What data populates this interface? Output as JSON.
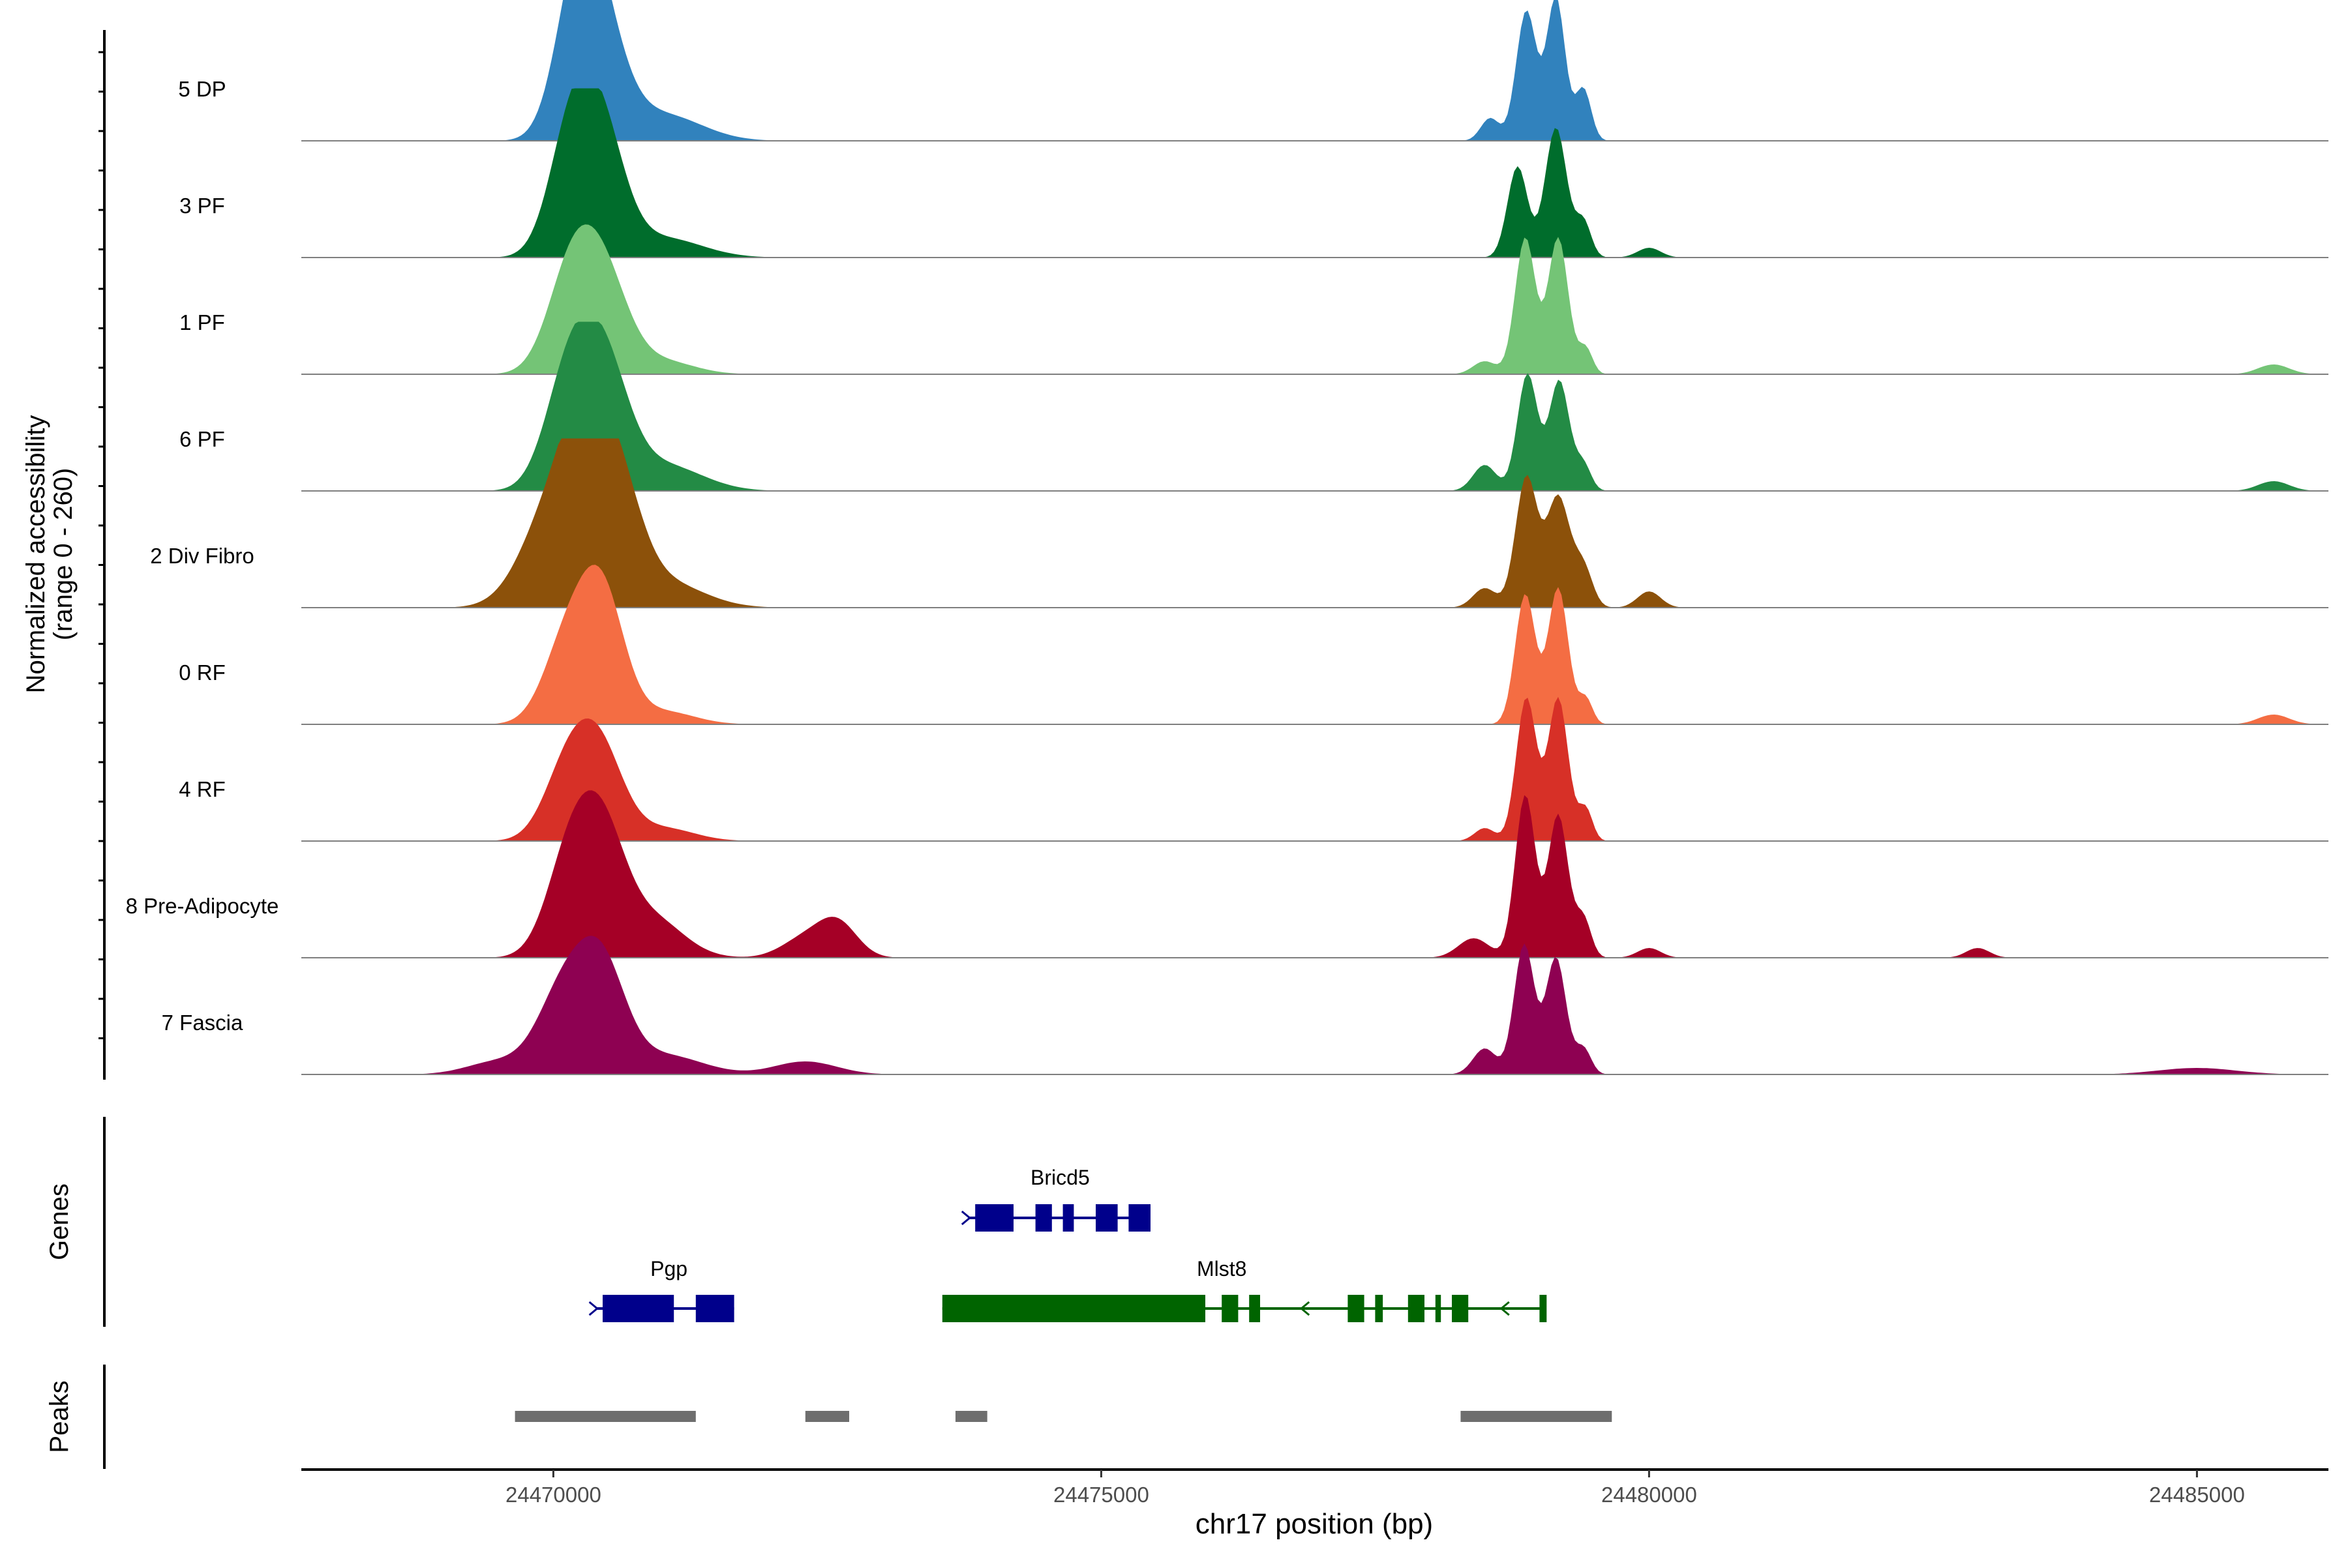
{
  "chart_data": {
    "type": "area",
    "ylabel_line1": "Normalized accessibility",
    "ylabel_line2": "(range 0 - 260)",
    "y_range": [
      0,
      260
    ],
    "xlabel": "chr17 position (bp)",
    "x_range": [
      24467700,
      24486200
    ],
    "x_ticks": [
      24470000,
      24475000,
      24480000,
      24485000
    ],
    "x_tick_labels": [
      "24470000",
      "24475000",
      "24480000",
      "24485000"
    ],
    "tracks": [
      {
        "name": "5 DP",
        "color": "#3182BD",
        "peaks": [
          [
            24470220,
            180,
            280
          ],
          [
            24470400,
            175,
            330
          ],
          [
            24471000,
            40,
            500
          ],
          [
            24478550,
            35,
            120
          ],
          [
            24478880,
            200,
            130
          ],
          [
            24479150,
            220,
            120
          ],
          [
            24479400,
            80,
            100
          ]
        ]
      },
      {
        "name": "3 PF",
        "color": "#006D2C",
        "peaks": [
          [
            24470150,
            170,
            280
          ],
          [
            24470430,
            190,
            300
          ],
          [
            24471000,
            30,
            500
          ],
          [
            24478800,
            140,
            130
          ],
          [
            24479150,
            200,
            140
          ],
          [
            24479400,
            55,
            100
          ],
          [
            24480000,
            15,
            150
          ]
        ]
      },
      {
        "name": "1 PF",
        "color": "#74C476",
        "peaks": [
          [
            24470150,
            140,
            300
          ],
          [
            24470450,
            150,
            320
          ],
          [
            24471000,
            20,
            400
          ],
          [
            24478500,
            20,
            150
          ],
          [
            24478870,
            210,
            130
          ],
          [
            24479170,
            210,
            130
          ],
          [
            24479420,
            40,
            90
          ],
          [
            24485700,
            15,
            200
          ]
        ]
      },
      {
        "name": "6 PF",
        "color": "#238B45",
        "peaks": [
          [
            24470130,
            160,
            300
          ],
          [
            24470450,
            190,
            320
          ],
          [
            24471000,
            40,
            500
          ],
          [
            24478500,
            40,
            150
          ],
          [
            24478890,
            180,
            130
          ],
          [
            24479180,
            170,
            130
          ],
          [
            24479400,
            40,
            100
          ],
          [
            24485700,
            15,
            200
          ]
        ]
      },
      {
        "name": "2 Div Fibro",
        "color": "#8C510A",
        "peaks": [
          [
            24470000,
            150,
            400
          ],
          [
            24470300,
            200,
            300
          ],
          [
            24470600,
            150,
            300
          ],
          [
            24471000,
            40,
            500
          ],
          [
            24478500,
            30,
            150
          ],
          [
            24478880,
            200,
            140
          ],
          [
            24479170,
            170,
            150
          ],
          [
            24479400,
            60,
            120
          ],
          [
            24480000,
            25,
            150
          ]
        ]
      },
      {
        "name": "0 RF",
        "color": "#F46D43",
        "peaks": [
          [
            24470130,
            130,
            300
          ],
          [
            24470450,
            190,
            280
          ],
          [
            24471000,
            20,
            400
          ],
          [
            24478870,
            200,
            130
          ],
          [
            24479170,
            210,
            130
          ],
          [
            24479420,
            40,
            90
          ],
          [
            24485700,
            15,
            200
          ]
        ]
      },
      {
        "name": "4 RF",
        "color": "#D73027",
        "peaks": [
          [
            24470130,
            110,
            300
          ],
          [
            24470430,
            130,
            300
          ],
          [
            24471000,
            20,
            400
          ],
          [
            24478500,
            20,
            130
          ],
          [
            24478880,
            220,
            130
          ],
          [
            24479170,
            220,
            130
          ],
          [
            24479420,
            50,
            90
          ]
        ]
      },
      {
        "name": "8 Pre-Adipocyte",
        "color": "#A50026",
        "peaks": [
          [
            24470150,
            150,
            300
          ],
          [
            24470450,
            170,
            300
          ],
          [
            24470900,
            60,
            400
          ],
          [
            24472300,
            30,
            300
          ],
          [
            24472600,
            50,
            250
          ],
          [
            24478400,
            30,
            200
          ],
          [
            24478870,
            250,
            130
          ],
          [
            24479170,
            220,
            130
          ],
          [
            24479400,
            60,
            100
          ],
          [
            24480000,
            15,
            150
          ],
          [
            24483000,
            15,
            150
          ]
        ]
      },
      {
        "name": "7 Fascia",
        "color": "#8E0152",
        "peaks": [
          [
            24469500,
            20,
            400
          ],
          [
            24470100,
            130,
            330
          ],
          [
            24470450,
            150,
            300
          ],
          [
            24471000,
            30,
            500
          ],
          [
            24472300,
            20,
            400
          ],
          [
            24478500,
            40,
            150
          ],
          [
            24478860,
            200,
            130
          ],
          [
            24479150,
            180,
            130
          ],
          [
            24479400,
            40,
            100
          ],
          [
            24485000,
            10,
            500
          ]
        ]
      }
    ],
    "genes_label": "Genes",
    "genes": [
      {
        "name": "Bricd5",
        "strand": "+",
        "color": "#00008B",
        "start": 24473800,
        "end": 24475450,
        "exons": [
          [
            24473850,
            24474200
          ],
          [
            24474400,
            24474550
          ],
          [
            24474650,
            24474750
          ],
          [
            24474950,
            24475150
          ],
          [
            24475250,
            24475450
          ]
        ]
      },
      {
        "name": "Pgp",
        "strand": "+",
        "color": "#00008B",
        "start": 24470400,
        "end": 24471650,
        "exons": [
          [
            24470450,
            24471100
          ],
          [
            24471300,
            24471650
          ]
        ]
      },
      {
        "name": "Mlst8",
        "strand": "-",
        "color": "#006400",
        "start": 24473550,
        "end": 24479050,
        "exons": [
          [
            24473550,
            24475950
          ],
          [
            24476100,
            24476250
          ],
          [
            24476350,
            24476450
          ],
          [
            24477250,
            24477400
          ],
          [
            24477500,
            24477570
          ],
          [
            24477800,
            24477950
          ],
          [
            24478050,
            24478100
          ],
          [
            24478200,
            24478350
          ],
          [
            24479000,
            24479050
          ]
        ]
      }
    ],
    "peaks_label": "Peaks",
    "peak_regions": [
      [
        24469650,
        24471300
      ],
      [
        24472300,
        24472700
      ],
      [
        24473670,
        24473960
      ],
      [
        24478280,
        24479660
      ]
    ]
  }
}
